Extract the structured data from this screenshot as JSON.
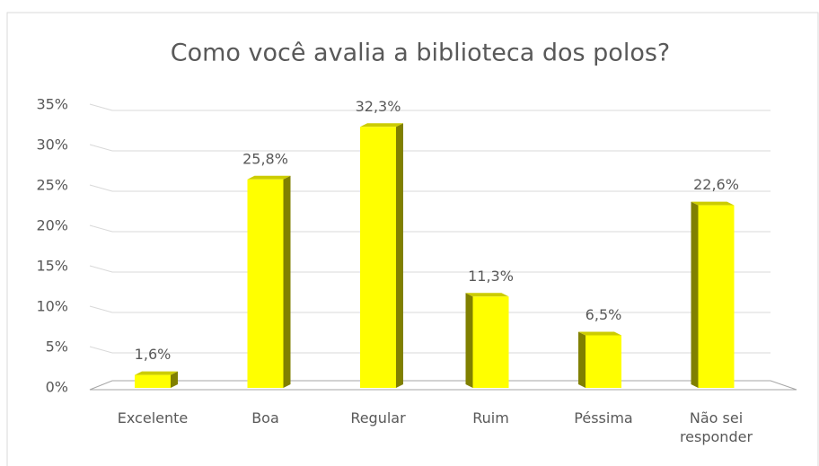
{
  "chart_data": {
    "type": "bar",
    "title": "Como você avalia a biblioteca dos polos?",
    "categories": [
      "Excelente",
      "Boa",
      "Regular",
      "Ruim",
      "Péssima",
      "Não sei responder"
    ],
    "values": [
      1.6,
      25.8,
      32.3,
      11.3,
      6.5,
      22.6
    ],
    "value_labels": [
      "1,6%",
      "25,8%",
      "32,3%",
      "11,3%",
      "6,5%",
      "22,6%"
    ],
    "color": "#ffff00",
    "side_color": "#808000",
    "ylim": [
      0,
      35
    ],
    "yticks": [
      {
        "value": 0,
        "label": "0%"
      },
      {
        "value": 5,
        "label": "5%"
      },
      {
        "value": 10,
        "label": "10%"
      },
      {
        "value": 15,
        "label": "15%"
      },
      {
        "value": 20,
        "label": "20%"
      },
      {
        "value": 25,
        "label": "25%"
      },
      {
        "value": 30,
        "label": "30%"
      },
      {
        "value": 35,
        "label": "35%"
      }
    ],
    "grid": true
  }
}
